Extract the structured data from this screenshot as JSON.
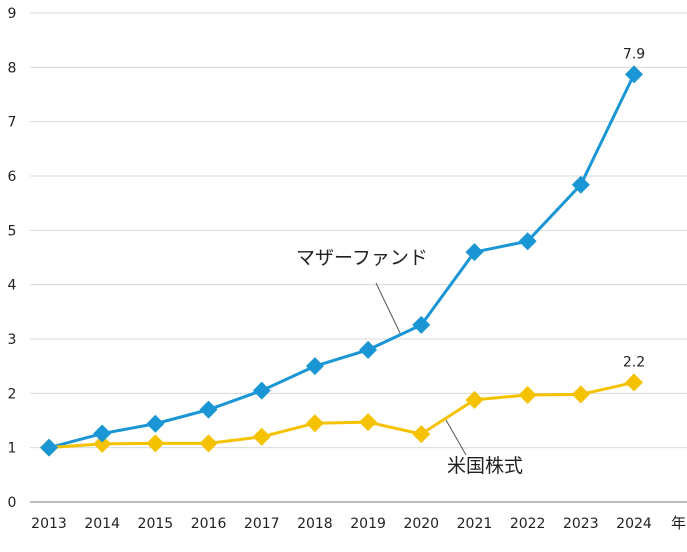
{
  "chart_data": {
    "type": "line",
    "title": "",
    "xlabel": "年",
    "ylabel": "",
    "ylim": [
      0,
      9
    ],
    "yticks": [
      0,
      1,
      2,
      3,
      4,
      5,
      6,
      7,
      8,
      9
    ],
    "grid": "horizontal",
    "categories": [
      "2013",
      "2014",
      "2015",
      "2016",
      "2017",
      "2018",
      "2019",
      "2020",
      "2021",
      "2022",
      "2023",
      "2024"
    ],
    "series": [
      {
        "name": "マザーファンド",
        "color": "#1a96d4",
        "marker": "diamond",
        "values": [
          1.0,
          1.26,
          1.44,
          1.7,
          2.05,
          2.5,
          2.8,
          3.26,
          4.6,
          4.8,
          5.84,
          7.87
        ],
        "end_label": "7.9"
      },
      {
        "name": "米国株式",
        "color": "#f5c200",
        "marker": "diamond",
        "values": [
          1.0,
          1.07,
          1.08,
          1.08,
          1.2,
          1.45,
          1.47,
          1.25,
          1.88,
          1.97,
          1.98,
          2.2
        ],
        "end_label": "2.2"
      }
    ]
  }
}
